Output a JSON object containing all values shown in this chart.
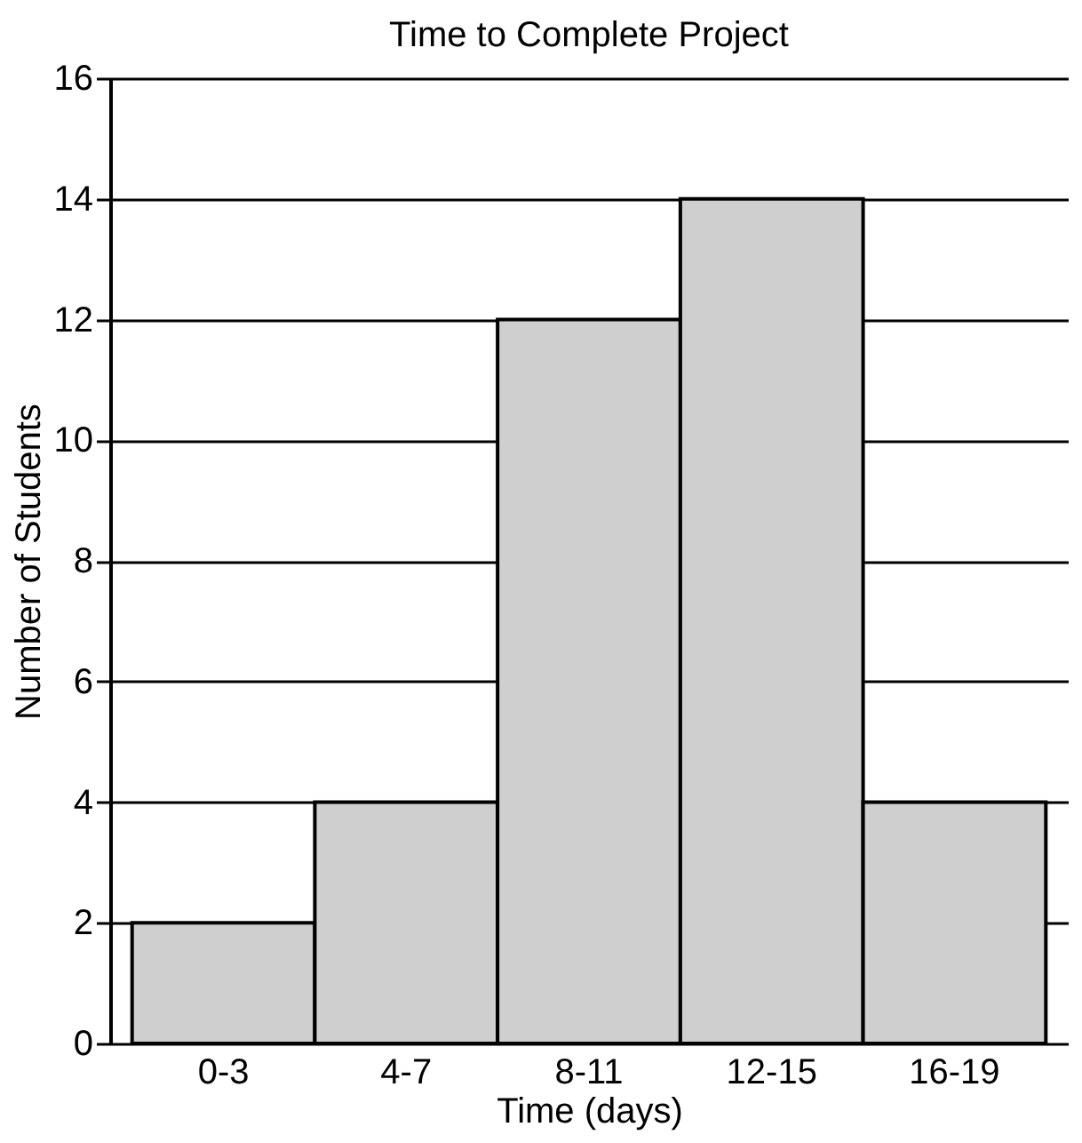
{
  "chart_data": {
    "type": "bar",
    "title": "Time to Complete Project",
    "xlabel": "Time (days)",
    "ylabel": "Number of Students",
    "categories": [
      "0-3",
      "4-7",
      "8-11",
      "12-15",
      "16-19"
    ],
    "values": [
      2,
      4,
      12,
      14,
      4
    ],
    "color": "#cfcfcf",
    "ylim": [
      0,
      16
    ],
    "yticks": [
      0,
      2,
      4,
      6,
      8,
      10,
      12,
      14,
      16
    ],
    "grid": "y"
  }
}
